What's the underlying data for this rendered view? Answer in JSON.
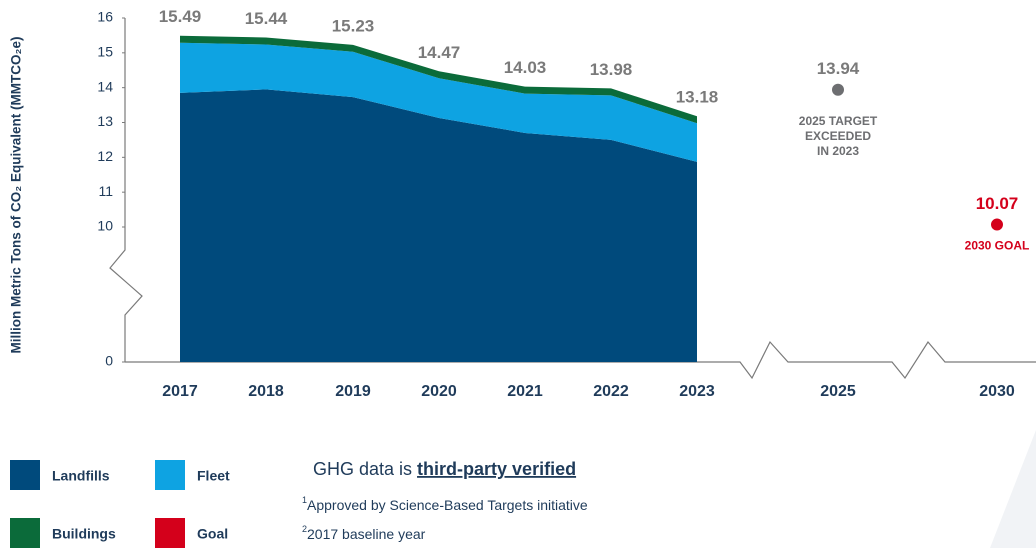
{
  "chart_data": {
    "type": "stacked_area",
    "y_axis_label": "Million Metric Tons of CO₂ Equivalent (MMTCO₂e)",
    "categories": [
      "2017",
      "2018",
      "2019",
      "2020",
      "2021",
      "2022",
      "2023",
      "2025",
      "2030"
    ],
    "series": [
      {
        "name": "Landfills",
        "color": "#004a7c",
        "values": [
          13.85,
          13.95,
          13.73,
          13.13,
          12.7,
          12.5,
          11.87,
          null,
          null
        ]
      },
      {
        "name": "Fleet",
        "color": "#0ea3e2",
        "values": [
          1.44,
          1.29,
          1.3,
          1.14,
          1.13,
          1.28,
          1.11,
          null,
          null
        ]
      },
      {
        "name": "Buildings",
        "color": "#0b6b3a",
        "values": [
          0.2,
          0.2,
          0.2,
          0.2,
          0.2,
          0.2,
          0.2,
          null,
          null
        ]
      },
      {
        "name": "Goal",
        "color": "#d4001b",
        "values": [
          null,
          null,
          null,
          null,
          null,
          null,
          null,
          null,
          10.07
        ],
        "label": "2030 GOAL"
      }
    ],
    "totals": [
      15.49,
      15.44,
      15.23,
      14.47,
      14.03,
      13.98,
      13.18,
      null,
      null
    ],
    "target": {
      "category": "2025",
      "value": 13.94,
      "color": "#6d6e71",
      "label_lines": [
        "2025 TARGET",
        "EXCEEDED",
        "IN 2023"
      ]
    },
    "ylim": [
      0,
      16
    ],
    "y_break": [
      0,
      10
    ],
    "yticks": [
      0,
      10,
      11,
      12,
      13,
      14,
      15,
      16
    ],
    "verification": {
      "text": "GHG data is ",
      "link": "third-party verified"
    },
    "footnotes": [
      {
        "marker": "1",
        "text": "Approved by Science-Based Targets initiative"
      },
      {
        "marker": "2",
        "text": "2017 baseline year"
      }
    ]
  }
}
